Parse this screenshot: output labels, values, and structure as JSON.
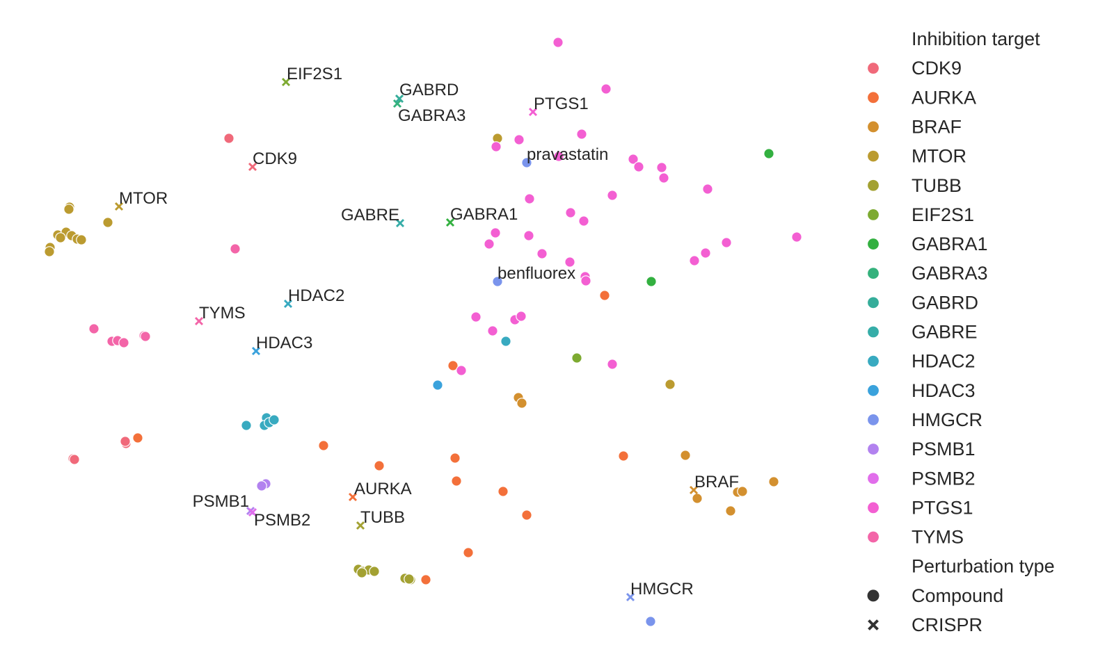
{
  "chart_data": {
    "type": "scatter",
    "title": "",
    "xlabel": "",
    "ylabel": "",
    "xlim": [
      0,
      1190
    ],
    "ylim": [
      0,
      961
    ],
    "grid": false,
    "axes_visible": false,
    "legend_position": "right",
    "colors": {
      "CDK9": "#f0697a",
      "AURKA": "#f3703a",
      "BRAF": "#d3902f",
      "MTOR": "#bb9b30",
      "TUBB": "#a3a132",
      "EIF2S1": "#7daa31",
      "GABRA1": "#33b040",
      "GABRA3": "#34b17c",
      "GABRD": "#35ad9a",
      "GABRE": "#36ada8",
      "HDAC2": "#38aac0",
      "HDAC3": "#3aa2dc",
      "HMGCR": "#7a94ec",
      "PSMB1": "#b282ef",
      "PSMB2": "#e16eeb",
      "PTGS1": "#f35fd2",
      "TYMS": "#f365a8"
    },
    "legend": {
      "hue_title": "Inhibition target",
      "hue_entries": [
        "CDK9",
        "AURKA",
        "BRAF",
        "MTOR",
        "TUBB",
        "EIF2S1",
        "GABRA1",
        "GABRA3",
        "GABRD",
        "GABRE",
        "HDAC2",
        "HDAC3",
        "HMGCR",
        "PSMB1",
        "PSMB2",
        "PTGS1",
        "TYMS"
      ],
      "style_title": "Perturbation type",
      "style_entries": [
        {
          "label": "Compound",
          "marker": "circle"
        },
        {
          "label": "CRISPR",
          "marker": "x"
        }
      ]
    },
    "series": [
      {
        "name": "CDK9",
        "marker": "circle",
        "points": [
          [
            329,
            762
          ],
          [
            105,
            301
          ],
          [
            107,
            300
          ],
          [
            181,
            323
          ],
          [
            180,
            326
          ]
        ]
      },
      {
        "name": "CDK9",
        "marker": "x",
        "points": [
          [
            363,
            721
          ]
        ],
        "label": "CDK9"
      },
      {
        "name": "AURKA",
        "marker": "circle",
        "points": [
          [
            869,
            536
          ],
          [
            651,
            435
          ],
          [
            198,
            331
          ],
          [
            465,
            320
          ],
          [
            545,
            291
          ],
          [
            654,
            302
          ],
          [
            656,
            269
          ],
          [
            723,
            254
          ],
          [
            757,
            220
          ],
          [
            673,
            166
          ],
          [
            612,
            127
          ],
          [
            896,
            305
          ]
        ]
      },
      {
        "name": "AURKA",
        "marker": "x",
        "points": [
          [
            507,
            246
          ]
        ],
        "label": "AURKA"
      },
      {
        "name": "BRAF",
        "marker": "circle",
        "points": [
          [
            745,
            389
          ],
          [
            750,
            381
          ],
          [
            985,
            306
          ],
          [
            1112,
            268
          ],
          [
            1060,
            253
          ],
          [
            1067,
            254
          ],
          [
            1002,
            244
          ],
          [
            1050,
            226
          ]
        ]
      },
      {
        "name": "BRAF",
        "marker": "x",
        "points": [
          [
            997,
            256
          ]
        ],
        "label": "BRAF"
      },
      {
        "name": "MTOR",
        "marker": "circle",
        "points": [
          [
            715,
            762
          ],
          [
            100,
            663
          ],
          [
            99,
            660
          ],
          [
            155,
            641
          ],
          [
            83,
            623
          ],
          [
            95,
            627
          ],
          [
            103,
            622
          ],
          [
            111,
            617
          ],
          [
            117,
            616
          ],
          [
            87,
            619
          ],
          [
            72,
            605
          ],
          [
            71,
            599
          ],
          [
            963,
            408
          ]
        ]
      },
      {
        "name": "MTOR",
        "marker": "x",
        "points": [
          [
            171,
            664
          ]
        ],
        "label": "MTOR"
      },
      {
        "name": "TUBB",
        "marker": "circle",
        "points": [
          [
            515,
            142
          ],
          [
            522,
            139
          ],
          [
            530,
            141
          ],
          [
            538,
            139
          ],
          [
            520,
            137
          ],
          [
            582,
            129
          ],
          [
            590,
            127
          ],
          [
            588,
            128
          ]
        ]
      },
      {
        "name": "TUBB",
        "marker": "x",
        "points": [
          [
            518,
            205
          ]
        ],
        "label": "TUBB"
      },
      {
        "name": "EIF2S1",
        "marker": "circle",
        "points": [
          [
            829,
            446
          ]
        ]
      },
      {
        "name": "EIF2S1",
        "marker": "x",
        "points": [
          [
            411,
            843
          ]
        ],
        "label": "EIF2S1"
      },
      {
        "name": "GABRA1",
        "marker": "circle",
        "points": [
          [
            1105,
            740
          ],
          [
            936,
            556
          ]
        ]
      },
      {
        "name": "GABRA1",
        "marker": "x",
        "points": [
          [
            647,
            641
          ]
        ],
        "label": "GABRA1"
      },
      {
        "name": "GABRA3",
        "marker": "x",
        "points": [
          [
            571,
            812
          ]
        ],
        "label": "GABRA3"
      },
      {
        "name": "GABRD",
        "marker": "x",
        "points": [
          [
            574,
            819
          ]
        ],
        "label": "GABRD"
      },
      {
        "name": "GABRE",
        "marker": "x",
        "points": [
          [
            575,
            640
          ]
        ],
        "label": "GABRE"
      },
      {
        "name": "HDAC2",
        "marker": "circle",
        "points": [
          [
            727,
            470
          ],
          [
            354,
            349
          ],
          [
            383,
            360
          ],
          [
            380,
            349
          ],
          [
            387,
            353
          ],
          [
            394,
            357
          ]
        ]
      },
      {
        "name": "HDAC2",
        "marker": "x",
        "points": [
          [
            414,
            524
          ]
        ],
        "label": "HDAC2"
      },
      {
        "name": "HDAC3",
        "marker": "circle",
        "points": [
          [
            629,
            407
          ]
        ]
      },
      {
        "name": "HDAC3",
        "marker": "x",
        "points": [
          [
            368,
            456
          ]
        ],
        "label": "HDAC3"
      },
      {
        "name": "HMGCR",
        "marker": "circle",
        "points": [
          [
            757,
            727
          ],
          [
            715,
            556
          ],
          [
            935,
            67
          ]
        ]
      },
      {
        "name": "HMGCR",
        "marker": "x",
        "points": [
          [
            906,
            102
          ]
        ],
        "label": "HMGCR"
      },
      {
        "name": "PSMB1",
        "marker": "circle",
        "points": [
          [
            382,
            265
          ],
          [
            376,
            262
          ]
        ]
      },
      {
        "name": "PSMB1",
        "marker": "x",
        "points": [
          [
            360,
            226
          ]
        ],
        "label": "PSMB1"
      },
      {
        "name": "PSMB2",
        "marker": "x",
        "points": [
          [
            363,
            224
          ]
        ],
        "label": "PSMB2"
      },
      {
        "name": "PTGS1",
        "marker": "circle",
        "points": [
          [
            802,
            900
          ],
          [
            871,
            833
          ],
          [
            836,
            768
          ],
          [
            713,
            750
          ],
          [
            746,
            760
          ],
          [
            803,
            736
          ],
          [
            910,
            732
          ],
          [
            918,
            721
          ],
          [
            951,
            720
          ],
          [
            954,
            705
          ],
          [
            1017,
            689
          ],
          [
            880,
            680
          ],
          [
            761,
            675
          ],
          [
            820,
            655
          ],
          [
            839,
            643
          ],
          [
            712,
            626
          ],
          [
            760,
            622
          ],
          [
            703,
            610
          ],
          [
            779,
            596
          ],
          [
            819,
            584
          ],
          [
            998,
            586
          ],
          [
            1014,
            597
          ],
          [
            1044,
            612
          ],
          [
            1145,
            620
          ],
          [
            841,
            563
          ],
          [
            842,
            557
          ],
          [
            684,
            505
          ],
          [
            740,
            501
          ],
          [
            749,
            506
          ],
          [
            708,
            485
          ],
          [
            663,
            428
          ],
          [
            880,
            437
          ]
        ]
      },
      {
        "name": "PTGS1",
        "marker": "x",
        "points": [
          [
            766,
            800
          ]
        ],
        "label": "PTGS1"
      },
      {
        "name": "TYMS",
        "marker": "circle",
        "points": [
          [
            338,
            603
          ],
          [
            135,
            488
          ],
          [
            161,
            470
          ],
          [
            169,
            471
          ],
          [
            178,
            468
          ],
          [
            207,
            478
          ],
          [
            209,
            477
          ]
        ]
      },
      {
        "name": "TYMS",
        "marker": "x",
        "points": [
          [
            286,
            499
          ]
        ],
        "label": "TYMS"
      }
    ],
    "annotations": [
      {
        "text": "pravastatin",
        "x": 757,
        "y": 727
      },
      {
        "text": "benfluorex",
        "x": 715,
        "y": 556
      }
    ]
  }
}
